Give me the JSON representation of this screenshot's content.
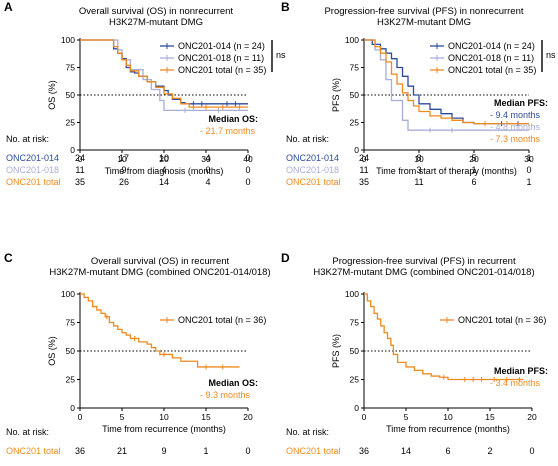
{
  "colors": {
    "onc014": "#2e4b9b",
    "onc018": "#a9aed7",
    "total": "#ef8a1f",
    "axis": "#000000"
  },
  "chart_data": [
    {
      "id": "A",
      "type": "line",
      "panel_label": "A",
      "title": [
        "Overall survival (OS) in nonrecurrent",
        "H3K27M-mutant DMG"
      ],
      "xlabel": "Time from diagnosis (months)",
      "ylabel": "OS (%)",
      "xlim": [
        0,
        40
      ],
      "ylim": [
        0,
        100
      ],
      "xticks": [
        0,
        10,
        20,
        30,
        40
      ],
      "yticks": [
        0,
        25,
        50,
        75,
        100
      ],
      "reference_y": 50,
      "legend": [
        {
          "key": "onc014",
          "label": "ONC201-014",
          "n": "24"
        },
        {
          "key": "onc018",
          "label": "ONC201-018",
          "n": "11"
        },
        {
          "key": "total",
          "label": "ONC201 total",
          "n": "35"
        }
      ],
      "legend_n_prefix": "(n = ",
      "legend_n_suffix": ")",
      "ns_label": "ns",
      "median": {
        "title": "Median OS:",
        "values": [
          {
            "key": "total",
            "text": "- 21.7 months"
          }
        ]
      },
      "risk_title": "No. at risk:",
      "risk_ticks": [
        0,
        10,
        20,
        30,
        40
      ],
      "risk_rows": [
        {
          "key": "onc014",
          "label": "ONC201-014",
          "values": [
            "24",
            "17",
            "10",
            "4",
            "0"
          ]
        },
        {
          "key": "onc018",
          "label": "ONC201-018",
          "values": [
            "11",
            "9",
            "4",
            "0",
            "0"
          ]
        },
        {
          "key": "total",
          "label": "ONC201 total",
          "values": [
            "35",
            "26",
            "14",
            "4",
            "0"
          ]
        }
      ],
      "series": [
        {
          "key": "onc014",
          "x": [
            0,
            7,
            8,
            9,
            10,
            11,
            12,
            13,
            14,
            16,
            18,
            20,
            21,
            22,
            24,
            25,
            40
          ],
          "y": [
            100,
            100,
            92,
            88,
            83,
            75,
            71,
            70,
            67,
            62,
            58,
            54,
            50,
            46,
            43,
            42,
            42
          ],
          "censors": [
            [
              27,
              42
            ],
            [
              29,
              42
            ],
            [
              35,
              42
            ],
            [
              37,
              42
            ]
          ]
        },
        {
          "key": "onc018",
          "x": [
            0,
            7,
            9,
            10,
            12,
            15,
            17,
            19,
            20,
            23,
            40
          ],
          "y": [
            100,
            100,
            91,
            82,
            73,
            64,
            55,
            45,
            36,
            36,
            36
          ],
          "censors": [
            [
              25,
              36
            ],
            [
              33,
              36
            ]
          ]
        },
        {
          "key": "total",
          "x": [
            0,
            7,
            8,
            9,
            10,
            11,
            12,
            14,
            16,
            18,
            20,
            22,
            24,
            26,
            40
          ],
          "y": [
            100,
            100,
            94,
            88,
            82,
            77,
            72,
            67,
            62,
            57,
            51,
            47,
            42,
            39,
            39
          ],
          "censors": [
            [
              27,
              39
            ],
            [
              30,
              39
            ],
            [
              34,
              39
            ],
            [
              38,
              39
            ]
          ]
        }
      ]
    },
    {
      "id": "B",
      "type": "line",
      "panel_label": "B",
      "title": [
        "Progression-free survival (PFS) in nonrecurrent",
        "H3K27M-mutant DMG"
      ],
      "xlabel": "Time from start of therapy (months)",
      "ylabel": "PFS (%)",
      "xlim": [
        0,
        30
      ],
      "ylim": [
        0,
        100
      ],
      "xticks": [
        0,
        10,
        20,
        30
      ],
      "yticks": [
        0,
        25,
        50,
        75,
        100
      ],
      "reference_y": 50,
      "legend": [
        {
          "key": "onc014",
          "label": "ONC201-014",
          "n": "24"
        },
        {
          "key": "onc018",
          "label": "ONC201-018",
          "n": "11"
        },
        {
          "key": "total",
          "label": "ONC201 total",
          "n": "35"
        }
      ],
      "legend_n_prefix": "(n = ",
      "legend_n_suffix": ")",
      "ns_label": "ns",
      "median": {
        "title": "Median PFS:",
        "values": [
          {
            "key": "onc014",
            "text": "- 9.4 months"
          },
          {
            "key": "onc018",
            "text": "- 4.8 months"
          },
          {
            "key": "total",
            "text": "- 7.3 months"
          }
        ]
      },
      "risk_title": "No. at risk:",
      "risk_ticks": [
        0,
        10,
        20,
        30
      ],
      "risk_rows": [
        {
          "key": "onc014",
          "label": "ONC201-014",
          "values": [
            "24",
            "8",
            "5",
            "1"
          ]
        },
        {
          "key": "onc018",
          "label": "ONC201-018",
          "values": [
            "11",
            "3",
            "1",
            "0"
          ]
        },
        {
          "key": "total",
          "label": "ONC201 total",
          "values": [
            "35",
            "11",
            "6",
            "1"
          ]
        }
      ],
      "series": [
        {
          "key": "onc014",
          "x": [
            0,
            1.5,
            3,
            4,
            5,
            6,
            7,
            8,
            9,
            10,
            12,
            14,
            16,
            18,
            20,
            30
          ],
          "y": [
            100,
            96,
            92,
            88,
            83,
            75,
            67,
            58,
            50,
            42,
            37,
            33,
            29,
            25,
            24,
            24
          ],
          "censors": [
            [
              22,
              24
            ],
            [
              25,
              24
            ],
            [
              28,
              24
            ]
          ]
        },
        {
          "key": "onc018",
          "x": [
            0,
            2,
            3,
            4,
            5,
            7,
            8,
            30
          ],
          "y": [
            100,
            91,
            82,
            64,
            45,
            27,
            18,
            18
          ],
          "censors": [
            [
              12,
              18
            ],
            [
              16,
              18
            ]
          ]
        },
        {
          "key": "total",
          "x": [
            0,
            2,
            3,
            4,
            5,
            6,
            7,
            8,
            9,
            10,
            12,
            14,
            16,
            18,
            20,
            30
          ],
          "y": [
            100,
            94,
            88,
            80,
            69,
            60,
            52,
            45,
            40,
            35,
            31,
            29,
            27,
            25,
            24,
            24
          ],
          "censors": [
            [
              22,
              24
            ],
            [
              26,
              24
            ]
          ]
        }
      ]
    },
    {
      "id": "C",
      "type": "line",
      "panel_label": "C",
      "title": [
        "Overall survival (OS) in recurrent",
        "H3K27M-mutant DMG (combined ONC201-014/018)"
      ],
      "xlabel": "Time from recurrence (months)",
      "ylabel": "OS (%)",
      "xlim": [
        0,
        20
      ],
      "ylim": [
        0,
        100
      ],
      "xticks": [
        0,
        5,
        10,
        15,
        20
      ],
      "yticks": [
        0,
        25,
        50,
        75,
        100
      ],
      "reference_y": 50,
      "legend": [
        {
          "key": "total",
          "label": "ONC201 total",
          "n": "36"
        }
      ],
      "legend_n_prefix": "(n = ",
      "legend_n_suffix": ")",
      "ns_label": "",
      "median": {
        "title": "Median OS:",
        "values": [
          {
            "key": "total",
            "text": "- 9.3 months"
          }
        ]
      },
      "risk_title": "No. at risk:",
      "risk_ticks": [
        0,
        5,
        10,
        15,
        20
      ],
      "risk_rows": [
        {
          "key": "total",
          "label": "ONC201 total",
          "values": [
            "36",
            "21",
            "9",
            "1",
            "0"
          ]
        }
      ],
      "series": [
        {
          "key": "total",
          "x": [
            0,
            0.5,
            1,
            1.5,
            2,
            2.5,
            3,
            3.5,
            4,
            4.5,
            5,
            5.5,
            6,
            7,
            8,
            8.5,
            9,
            9.5,
            11,
            12,
            14,
            19
          ],
          "y": [
            100,
            97,
            94,
            89,
            86,
            83,
            80,
            75,
            72,
            69,
            66,
            64,
            61,
            58,
            56,
            53,
            50,
            47,
            44,
            41,
            36,
            36
          ],
          "censors": [
            [
              3.2,
              80
            ],
            [
              6.5,
              61
            ],
            [
              10,
              47
            ],
            [
              15,
              36
            ],
            [
              17,
              36
            ]
          ]
        }
      ]
    },
    {
      "id": "D",
      "type": "line",
      "panel_label": "D",
      "title": [
        "Progression-free survival (PFS) in recurrent",
        "H3K27M-mutant DMG (combined ONC201-014/018)"
      ],
      "xlabel": "Time from recurrence (months)",
      "ylabel": "PFS (%)",
      "xlim": [
        0,
        20
      ],
      "ylim": [
        0,
        100
      ],
      "xticks": [
        0,
        5,
        10,
        15,
        20
      ],
      "yticks": [
        0,
        25,
        50,
        75,
        100
      ],
      "reference_y": 50,
      "legend": [
        {
          "key": "total",
          "label": "ONC201 total",
          "n": "36"
        }
      ],
      "legend_n_prefix": "(n = ",
      "legend_n_suffix": ")",
      "ns_label": "",
      "median": {
        "title": "Median PFS:",
        "values": [
          {
            "key": "total",
            "text": "- 3.4 months"
          }
        ]
      },
      "risk_title": "No. at risk:",
      "risk_ticks": [
        0,
        5,
        10,
        15,
        20
      ],
      "risk_rows": [
        {
          "key": "total",
          "label": "ONC201 total",
          "values": [
            "36",
            "14",
            "6",
            "2",
            "0"
          ]
        }
      ],
      "series": [
        {
          "key": "total",
          "x": [
            0,
            0.4,
            0.8,
            1.2,
            1.6,
            2,
            2.4,
            2.8,
            3.2,
            3.5,
            4,
            5,
            6,
            7,
            8,
            9,
            10,
            19
          ],
          "y": [
            100,
            94,
            89,
            83,
            78,
            72,
            66,
            61,
            55,
            47,
            40,
            36,
            33,
            30,
            28,
            27,
            25,
            25
          ],
          "censors": [
            [
              9.5,
              27
            ],
            [
              12,
              25
            ],
            [
              13,
              25
            ],
            [
              14,
              25
            ],
            [
              15.5,
              25
            ],
            [
              17,
              25
            ],
            [
              18.5,
              25
            ]
          ]
        }
      ]
    }
  ]
}
